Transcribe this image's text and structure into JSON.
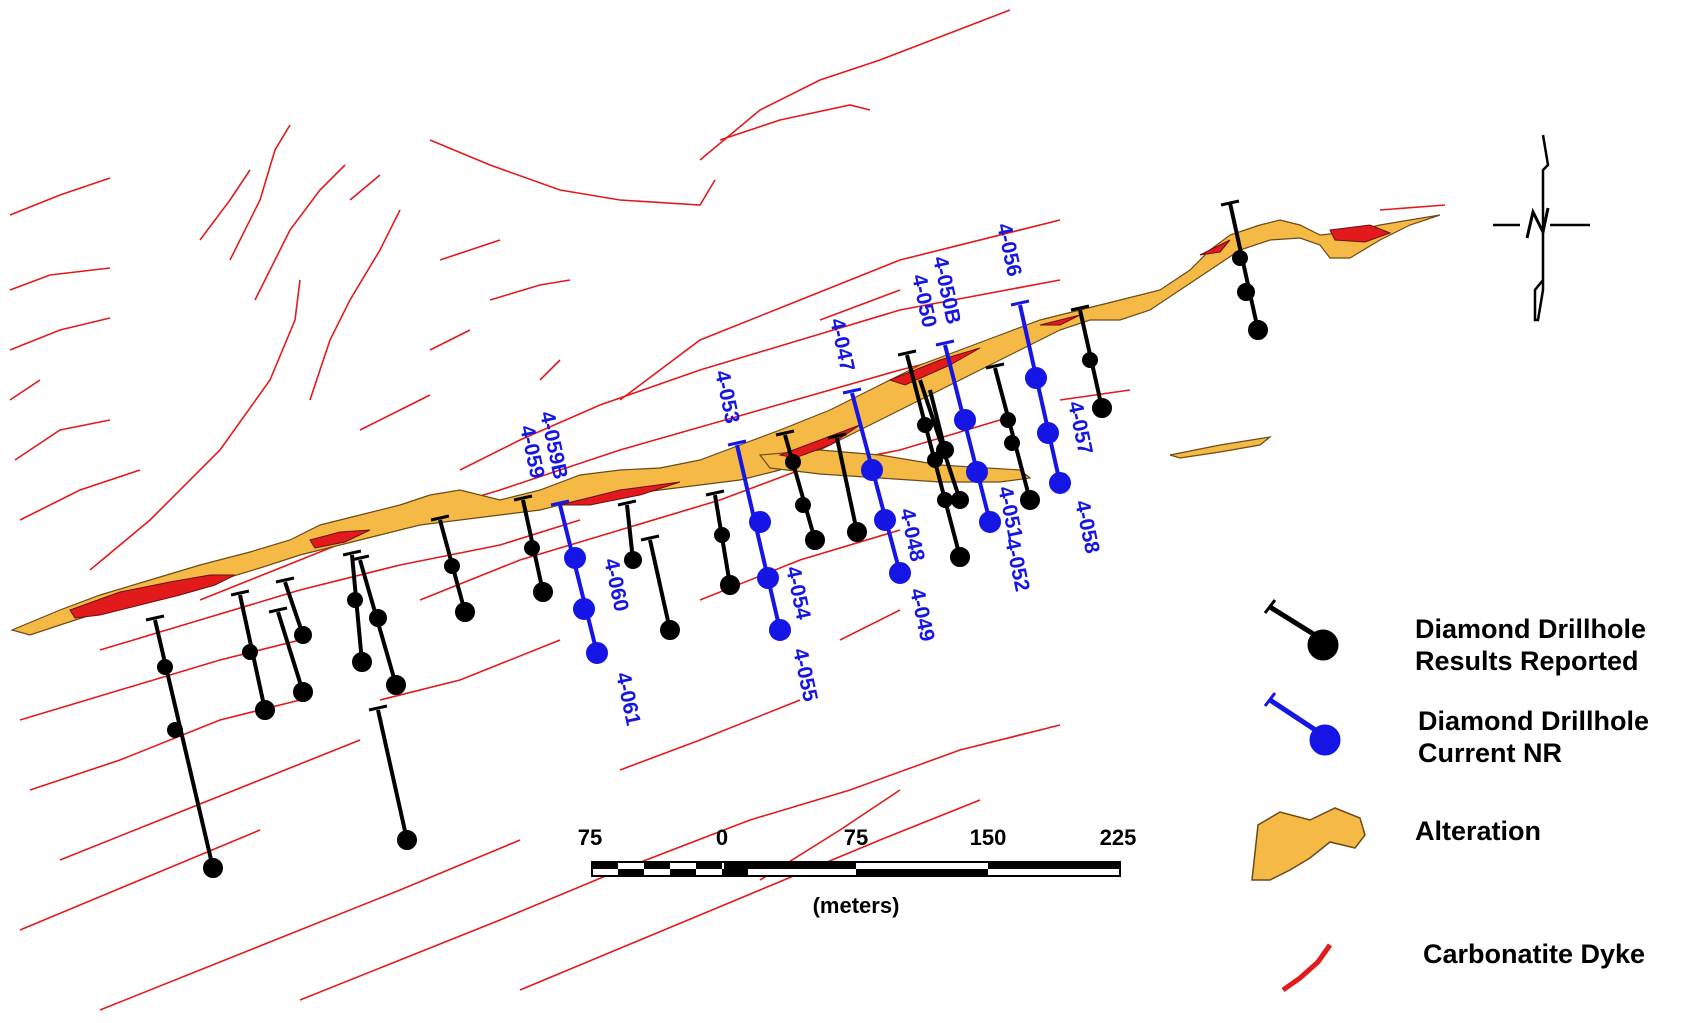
{
  "map": {
    "colors": {
      "dyke": "#e31a1c",
      "alteration_fill": "#f5b945",
      "alteration_edge": "#6b4a1a",
      "reported_hole": "#000000",
      "current_hole": "#1515e6"
    }
  },
  "drillholes_current": [
    "4-059B",
    "4-059",
    "4-060",
    "4-061",
    "4-053",
    "4-054",
    "4-055",
    "4-047",
    "4-048",
    "4-049",
    "4-050B",
    "4-050",
    "4-051",
    "4-052",
    "4-056",
    "4-057",
    "4-058"
  ],
  "scale_bar": {
    "ticks": [
      "75",
      "0",
      "75",
      "150",
      "225"
    ],
    "unit": "(meters)"
  },
  "legend": {
    "items": [
      {
        "line1": "Diamond Drillhole",
        "line2": "Results Reported",
        "icon": "black-drillhole-icon"
      },
      {
        "line1": "Diamond Drillhole",
        "line2": "Current NR",
        "icon": "blue-drillhole-icon"
      },
      {
        "line1": "Alteration",
        "line2": "",
        "icon": "alteration-polygon-icon"
      },
      {
        "line1": "Carbonatite Dyke",
        "line2": "",
        "icon": "red-line-icon"
      }
    ]
  },
  "north_arrow": {
    "label": "N",
    "icon": "north-arrow-icon"
  }
}
